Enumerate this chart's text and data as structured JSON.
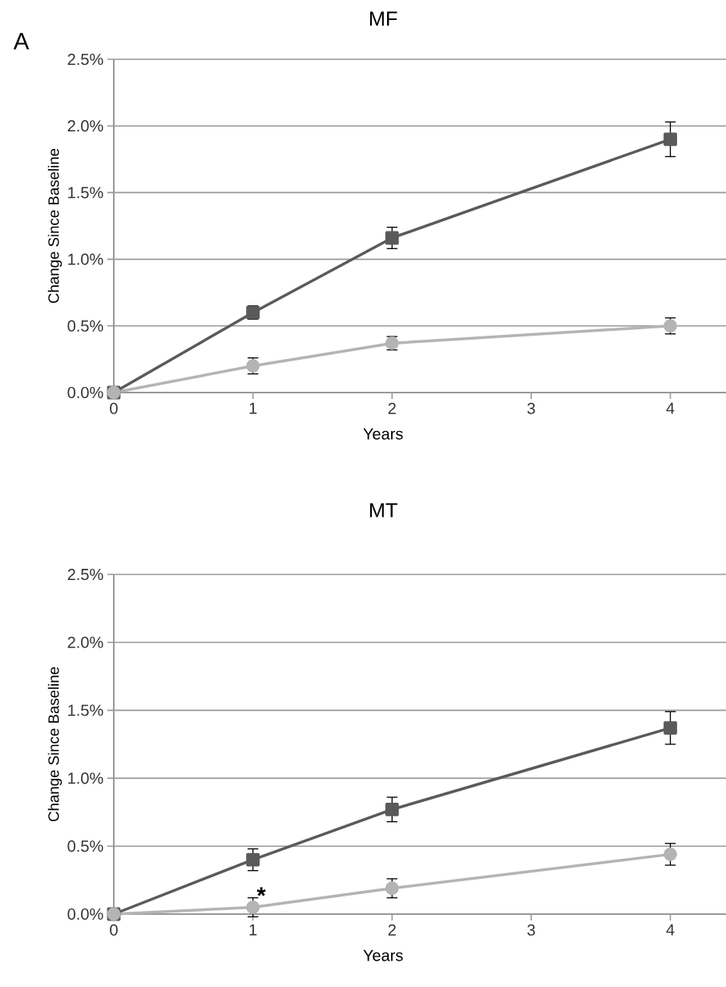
{
  "chart_data": [
    {
      "type": "line",
      "title": "MF",
      "xlabel": "Years",
      "ylabel": "Change Since Baseline",
      "x": [
        0,
        1,
        2,
        4
      ],
      "xlim": [
        0,
        4.4
      ],
      "xticks": [
        0,
        1,
        2,
        3,
        4
      ],
      "ylim": [
        0,
        2.5
      ],
      "yticks": [
        {
          "value": 0,
          "label": "0.0%"
        },
        {
          "value": 0.5,
          "label": "0.5%"
        },
        {
          "value": 1,
          "label": "1.0%"
        },
        {
          "value": 1.5,
          "label": "1.5%"
        },
        {
          "value": 2,
          "label": "2.0%"
        },
        {
          "value": 2.5,
          "label": "2.5%"
        }
      ],
      "grid": "y",
      "annotations": [
        "A"
      ],
      "series": [
        {
          "color": "#5a5a5a",
          "marker": "square",
          "values": [
            0,
            0.6,
            1.16,
            1.9
          ],
          "errors": [
            null,
            0.05,
            0.08,
            0.13
          ]
        },
        {
          "color": "#b4b4b4",
          "marker": "circle",
          "values": [
            0,
            0.2,
            0.37,
            0.5
          ],
          "errors": [
            null,
            0.06,
            0.05,
            0.06
          ]
        }
      ]
    },
    {
      "type": "line",
      "title": "MT",
      "xlabel": "Years",
      "ylabel": "Change Since Baseline",
      "x": [
        0,
        1,
        2,
        4
      ],
      "xlim": [
        0,
        4.4
      ],
      "xticks": [
        0,
        1,
        2,
        3,
        4
      ],
      "ylim": [
        0,
        2.5
      ],
      "yticks": [
        {
          "value": 0,
          "label": "0.0%"
        },
        {
          "value": 0.5,
          "label": "0.5%"
        },
        {
          "value": 1,
          "label": "1.0%"
        },
        {
          "value": 1.5,
          "label": "1.5%"
        },
        {
          "value": 2,
          "label": "2.0%"
        },
        {
          "value": 2.5,
          "label": "2.5%"
        }
      ],
      "grid": "y",
      "annotations": [
        {
          "text": "*",
          "x": 1,
          "y": 0.05
        }
      ],
      "series": [
        {
          "color": "#5a5a5a",
          "marker": "square",
          "values": [
            0,
            0.4,
            0.77,
            1.37
          ],
          "errors": [
            null,
            0.08,
            0.09,
            0.12
          ]
        },
        {
          "color": "#b4b4b4",
          "marker": "circle",
          "values": [
            0,
            0.05,
            0.19,
            0.44
          ],
          "errors": [
            null,
            0.07,
            0.07,
            0.08
          ]
        }
      ]
    }
  ]
}
